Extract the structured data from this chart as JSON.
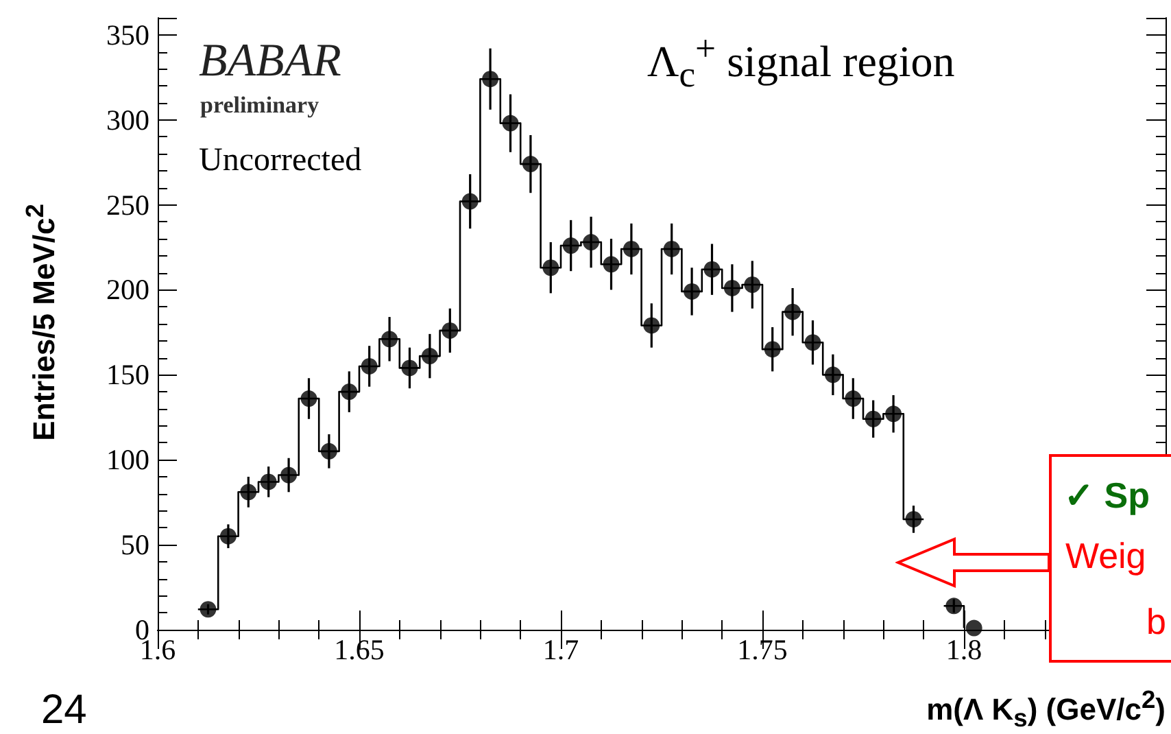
{
  "chart_data": {
    "type": "step",
    "title": "Λ$_{c}$$^{+}$ signal region",
    "xlabel": "m(Λ K$_{s}$)  (GeV/c$^{2}$)",
    "ylabel": "Entries/5 MeV/c$^{2}$",
    "annotations": [
      "BABAR",
      "preliminary",
      "Uncorrected",
      "24",
      "✓ Sp",
      "Weig",
      "b"
    ],
    "series": [
      {
        "color": "#000000",
        "marker": "none",
        "x": [
          1.61,
          1.615,
          1.62,
          1.625,
          1.63,
          1.635,
          1.64,
          1.645,
          1.65,
          1.655,
          1.66,
          1.665,
          1.67,
          1.675,
          1.68,
          1.685,
          1.69,
          1.695,
          1.7,
          1.705,
          1.71,
          1.715,
          1.72,
          1.725,
          1.73,
          1.735,
          1.74,
          1.745,
          1.75,
          1.755,
          1.76,
          1.765,
          1.77,
          1.775,
          1.78,
          1.785,
          1.79,
          1.795,
          1.8
        ],
        "values": [
          12,
          55,
          81,
          87,
          91,
          136,
          105,
          140,
          155,
          171,
          154,
          161,
          176,
          252,
          324,
          298,
          274,
          213,
          226,
          228,
          215,
          224,
          179,
          224,
          199,
          212,
          201,
          203,
          165,
          187,
          169,
          150,
          136,
          124,
          127,
          65,
          null,
          14,
          1
        ]
      },
      {
        "type": "scatter",
        "color": "#000000",
        "marker": "circle",
        "x": [
          1.6125,
          1.6175,
          1.6225,
          1.6275,
          1.6325,
          1.6375,
          1.6425,
          1.6475,
          1.6525,
          1.6575,
          1.6625,
          1.6675,
          1.6725,
          1.6775,
          1.6825,
          1.6875,
          1.6925,
          1.6975,
          1.7025,
          1.7075,
          1.7125,
          1.7175,
          1.7225,
          1.7275,
          1.7325,
          1.7375,
          1.7425,
          1.7475,
          1.7525,
          1.7575,
          1.7625,
          1.7675,
          1.7725,
          1.7775,
          1.7825,
          1.7875,
          1.7925,
          1.7975,
          1.8025
        ],
        "values": [
          12,
          55,
          81,
          87,
          91,
          136,
          105,
          140,
          155,
          171,
          154,
          161,
          176,
          252,
          324,
          298,
          274,
          213,
          226,
          228,
          215,
          224,
          179,
          224,
          199,
          212,
          201,
          203,
          165,
          187,
          169,
          150,
          136,
          124,
          127,
          65,
          null,
          14,
          1
        ],
        "errors": [
          3,
          7,
          9,
          9,
          10,
          12,
          10,
          12,
          12,
          13,
          12,
          13,
          13,
          16,
          18,
          17,
          17,
          15,
          15,
          15,
          15,
          15,
          13,
          15,
          14,
          15,
          14,
          14,
          13,
          14,
          13,
          12,
          12,
          11,
          11,
          8,
          null,
          4,
          null
        ]
      }
    ],
    "xlim": [
      1.6,
      1.85
    ],
    "xticks": [
      1.6,
      1.65,
      1.7,
      1.75,
      1.8
    ],
    "ylim": [
      0,
      360
    ],
    "yticks": [
      0,
      50,
      100,
      150,
      200,
      250,
      300,
      350
    ]
  }
}
